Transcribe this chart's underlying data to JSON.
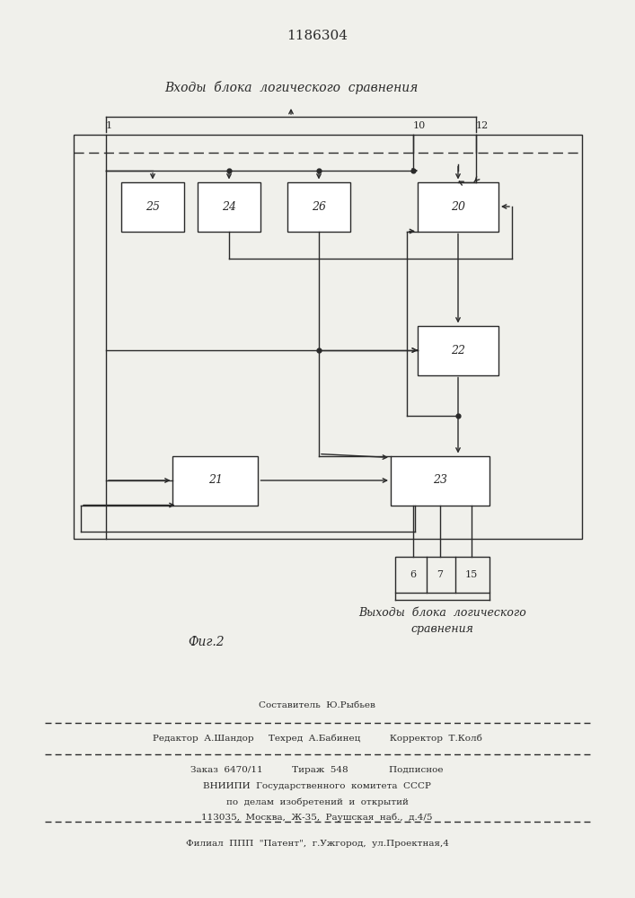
{
  "title": "1186304",
  "fig_label": "Фиг.2",
  "header_text": "Входы  блока  логического  сравнения",
  "footer_text": "Выходы  блока  логического\nсравнения",
  "editor_line1": "Составитель  Ю.Рыбьев",
  "editor_line2": "Редактор  А.Шандор     Техред  А.Бабинец          Корректор  Т.Колб",
  "order_line": "Заказ  6470/11          Тираж  548              Подписное",
  "vnipi_line1": "ВНИИПИ  Государственного  комитета  СССР",
  "vnipi_line2": "по  делам  изобретений  и  открытий",
  "vnipi_line3": "113035,  Москва,  Ж-35,  Раушская  наб.,  д.4/5",
  "filial_line": "Филиал  ППП  \"Патент\",  г.Ужгород,  ул.Проектная,4",
  "bg_color": "#f0f0eb",
  "line_color": "#2a2a2a",
  "text_color": "#2a2a2a"
}
